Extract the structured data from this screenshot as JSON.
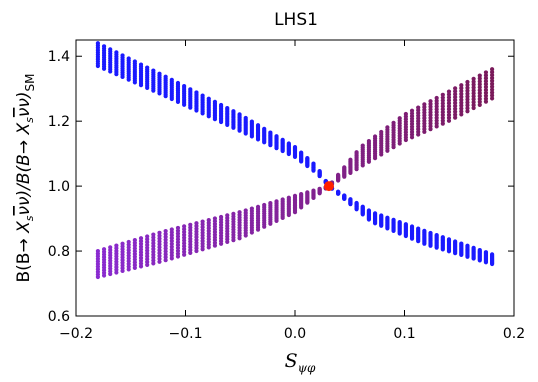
{
  "chart_data": {
    "type": "scatter",
    "title": "LHS1",
    "xlabel": "S_ψφ",
    "xlabel_main": "S",
    "xlabel_sub": "ψφ",
    "ylabel": "B(B→X_s ν̄ ν)/B(B→X_s ν̄ ν)_SM",
    "ylabel_parts": {
      "a": "B(B",
      "arrow": "→",
      "b": " X",
      "s": "s",
      "nubar": "ν",
      "c": "ν)/B(B",
      "d": "ν)",
      "sm": "SM"
    },
    "xlim": [
      -0.2,
      0.2
    ],
    "ylim": [
      0.6,
      1.45
    ],
    "xticks": [
      -0.2,
      -0.1,
      0.0,
      0.1,
      0.2
    ],
    "xtick_labels": [
      "−0.2",
      "−0.1",
      "0.0",
      "0.1",
      "0.2"
    ],
    "yticks": [
      0.6,
      0.8,
      1.0,
      1.2,
      1.4
    ],
    "ytick_labels": [
      "0.6",
      "0.8",
      "1.0",
      "1.2",
      "1.4"
    ],
    "grid": false,
    "sm_point": {
      "x": 0.031,
      "y": 1.0,
      "color": "#ff2200"
    },
    "series": [
      {
        "color": "#1a1aff",
        "band_upper": [
          [
            -0.18,
            1.44
          ],
          [
            -0.12,
            1.34
          ],
          [
            -0.05,
            1.22
          ],
          [
            0.0,
            1.12
          ],
          [
            0.02,
            1.06
          ],
          [
            0.031,
            1.0
          ],
          [
            0.07,
            0.92
          ],
          [
            0.12,
            0.86
          ],
          [
            0.18,
            0.79
          ]
        ],
        "band_lower": [
          [
            -0.18,
            1.37
          ],
          [
            -0.12,
            1.28
          ],
          [
            -0.05,
            1.17
          ],
          [
            0.0,
            1.09
          ],
          [
            0.02,
            1.04
          ],
          [
            0.031,
            1.0
          ],
          [
            0.07,
            0.89
          ],
          [
            0.12,
            0.82
          ],
          [
            0.18,
            0.76
          ]
        ]
      },
      {
        "color": "#8a1a8a",
        "color_start": "#8a2bd0",
        "color_end": "#7a1a5a",
        "band_upper": [
          [
            -0.18,
            0.8
          ],
          [
            -0.12,
            0.86
          ],
          [
            -0.05,
            0.92
          ],
          [
            0.0,
            0.97
          ],
          [
            0.031,
            1.0
          ],
          [
            0.06,
            1.12
          ],
          [
            0.1,
            1.22
          ],
          [
            0.14,
            1.29
          ],
          [
            0.18,
            1.36
          ]
        ],
        "band_lower": [
          [
            -0.18,
            0.72
          ],
          [
            -0.12,
            0.77
          ],
          [
            -0.05,
            0.84
          ],
          [
            0.0,
            0.92
          ],
          [
            0.031,
            1.0
          ],
          [
            0.06,
            1.06
          ],
          [
            0.1,
            1.14
          ],
          [
            0.14,
            1.2
          ],
          [
            0.18,
            1.27
          ]
        ]
      }
    ]
  }
}
